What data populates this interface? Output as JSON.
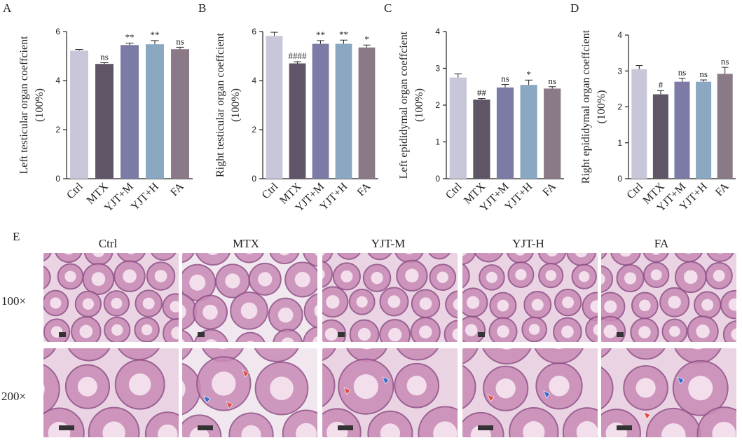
{
  "colors": {
    "Ctrl": "#c8c7d9",
    "MTX": "#5f5566",
    "YJT+M": "#7b7ba6",
    "YJT+H": "#8aa8c2",
    "FA": "#8a7a88",
    "axis": "#222222",
    "tissue": "#d9a6c6",
    "red_arrow": "#e5483f",
    "blue_arrow": "#2d6bd1"
  },
  "chart_data": [
    {
      "panel": "A",
      "type": "bar",
      "ylabel": "Left testicular organ coeffcient (100%)",
      "ylabel_lines": [
        "Left testicular organ coeffcient",
        "(100%)"
      ],
      "categories": [
        "Ctrl",
        "MTX",
        "YJT+M",
        "YJT+H",
        "FA"
      ],
      "values": [
        5.22,
        4.68,
        5.45,
        5.48,
        5.28
      ],
      "errors": [
        0.05,
        0.05,
        0.08,
        0.15,
        0.08
      ],
      "annotations": [
        "",
        "ns",
        "**",
        "**",
        "ns"
      ],
      "ylim": [
        0,
        6
      ],
      "yticks": [
        0,
        2,
        4,
        6
      ]
    },
    {
      "panel": "B",
      "type": "bar",
      "ylabel": "Right testicular organ coeffcient (100%)",
      "ylabel_lines": [
        "Right testicular organ coeffcient",
        "(100%)"
      ],
      "categories": [
        "Ctrl",
        "MTX",
        "YJT+M",
        "YJT+H",
        "FA"
      ],
      "values": [
        5.82,
        4.7,
        5.5,
        5.5,
        5.35
      ],
      "errors": [
        0.15,
        0.07,
        0.13,
        0.15,
        0.1
      ],
      "annotations": [
        "",
        "####",
        "**",
        "**",
        "*"
      ],
      "ylim": [
        0,
        6
      ],
      "yticks": [
        0,
        2,
        4,
        6
      ]
    },
    {
      "panel": "C",
      "type": "bar",
      "ylabel": "Left epididymal organ coeffcient (100%)",
      "ylabel_lines": [
        "Left epididymal organ coeffcient",
        "(100%)"
      ],
      "categories": [
        "Ctrl",
        "MTX",
        "YJT+M",
        "YJT+H",
        "FA"
      ],
      "values": [
        2.75,
        2.15,
        2.48,
        2.55,
        2.45
      ],
      "errors": [
        0.1,
        0.03,
        0.08,
        0.13,
        0.05
      ],
      "annotations": [
        "",
        "##",
        "ns",
        "*",
        "ns"
      ],
      "ylim": [
        0,
        4
      ],
      "yticks": [
        0,
        1,
        2,
        3,
        4
      ]
    },
    {
      "panel": "D",
      "type": "bar",
      "ylabel": "Right epididymal organ coeffcient (100%)",
      "ylabel_lines": [
        "Right epididymal organ coeffcient",
        "(100%)"
      ],
      "categories": [
        "Ctrl",
        "MTX",
        "YJT+M",
        "YJT+H",
        "FA"
      ],
      "values": [
        3.05,
        2.35,
        2.7,
        2.7,
        2.92
      ],
      "errors": [
        0.1,
        0.1,
        0.1,
        0.05,
        0.18
      ],
      "annotations": [
        "",
        "#",
        "ns",
        "ns",
        "ns"
      ],
      "ylim": [
        0,
        4
      ],
      "yticks": [
        0,
        1,
        2,
        3,
        4
      ]
    }
  ],
  "histology": {
    "panel": "E",
    "groups": [
      "Ctrl",
      "MTX",
      "YJT-M",
      "YJT-H",
      "FA"
    ],
    "magnifications": [
      "100×",
      "200×"
    ]
  }
}
